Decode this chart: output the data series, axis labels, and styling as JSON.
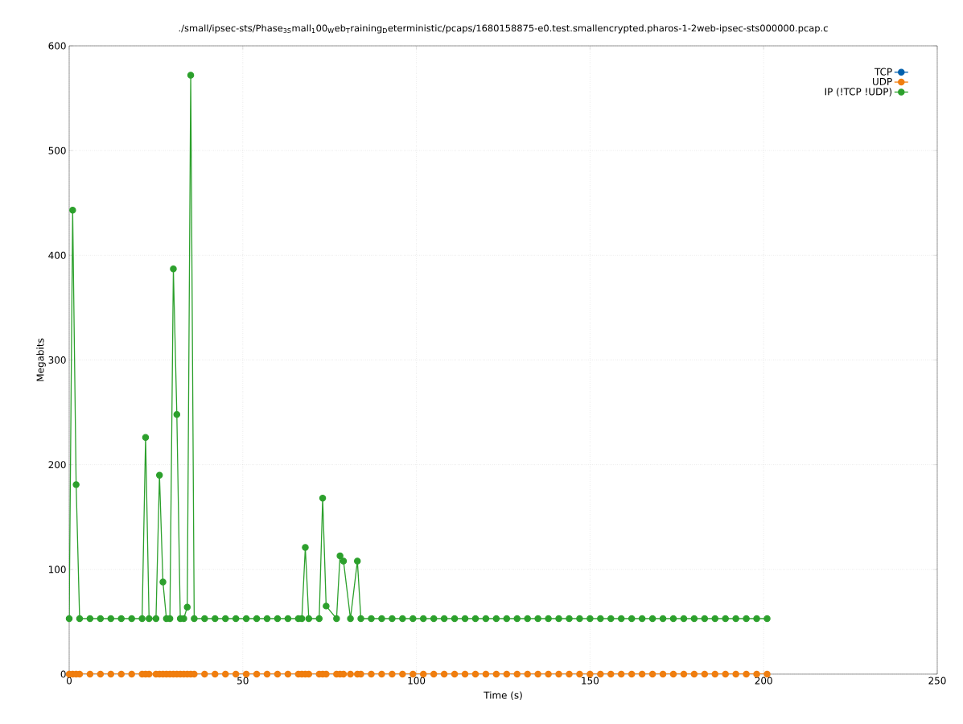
{
  "chart_data": {
    "type": "line",
    "title": "./small/ipsec-sts/Phase$_{3S}$mall$_{1}$00$_{W}$eb$_{T}$raining$_{D}$eterministic/pcaps/1680158875-e0.test.smallencrypted.pharos-1-2web-ipsec-sts000000.pcap.c",
    "xlabel": "Time (s)",
    "ylabel": "Megabits",
    "x": [
      0,
      1,
      2,
      3,
      6,
      9,
      12,
      15,
      18,
      21,
      22,
      23,
      25,
      26,
      27,
      28,
      29,
      30,
      31,
      32,
      33,
      34,
      35,
      36,
      39,
      42,
      45,
      48,
      51,
      54,
      57,
      60,
      63,
      66,
      67,
      68,
      69,
      72,
      73,
      74,
      77,
      78,
      79,
      81,
      83,
      84,
      87,
      90,
      93,
      96,
      99,
      102,
      105,
      108,
      111,
      114,
      117,
      120,
      123,
      126,
      129,
      132,
      135,
      138,
      141,
      144,
      147,
      150,
      153,
      156,
      159,
      162,
      165,
      168,
      171,
      174,
      177,
      180,
      183,
      186,
      189,
      192,
      195,
      198,
      201
    ],
    "series": [
      {
        "name": "TCP",
        "color": "#0060ad",
        "values": [
          null,
          null,
          null,
          null,
          null,
          null,
          null,
          null,
          null,
          null,
          null,
          null,
          null,
          null,
          null,
          null,
          null,
          null,
          null,
          null,
          null,
          null,
          null,
          null,
          null,
          null,
          null,
          null,
          null,
          null,
          null,
          null,
          null,
          null,
          null,
          null,
          null,
          null,
          null,
          null,
          null,
          null,
          null,
          null,
          null,
          null,
          null,
          null,
          null,
          null,
          null,
          null,
          null,
          null,
          null,
          null,
          null,
          null,
          null,
          null,
          null,
          null,
          null,
          null,
          null,
          null,
          null,
          null,
          null,
          null,
          null,
          null,
          null,
          null,
          null,
          null,
          null,
          null,
          null,
          null,
          null,
          null,
          null,
          null,
          null
        ]
      },
      {
        "name": "UDP",
        "color": "#f07e0f",
        "values": [
          0,
          0,
          0,
          0,
          0,
          0,
          0,
          0,
          0,
          0,
          0,
          0,
          0,
          0,
          0,
          0,
          0,
          0,
          0,
          0,
          0,
          0,
          0,
          0,
          0,
          0,
          0,
          0,
          0,
          0,
          0,
          0,
          0,
          0,
          0,
          0,
          0,
          0,
          0,
          0,
          0,
          0,
          0,
          0,
          0,
          0,
          0,
          0,
          0,
          0,
          0,
          0,
          0,
          0,
          0,
          0,
          0,
          0,
          0,
          0,
          0,
          0,
          0,
          0,
          0,
          0,
          0,
          0,
          0,
          0,
          0,
          0,
          0,
          0,
          0,
          0,
          0,
          0,
          0,
          0,
          0,
          0,
          0,
          0,
          0
        ]
      },
      {
        "name": "IP (!TCP  !UDP)",
        "color": "#2ca02c",
        "values": [
          53,
          443,
          181,
          53,
          53,
          53,
          53,
          53,
          53,
          53,
          226,
          53,
          53,
          190,
          88,
          53,
          53,
          387,
          248,
          53,
          53,
          64,
          572,
          53,
          53,
          53,
          53,
          53,
          53,
          53,
          53,
          53,
          53,
          53,
          53,
          121,
          53,
          53,
          168,
          65,
          53,
          113,
          108,
          53,
          108,
          53,
          53,
          53,
          53,
          53,
          53,
          53,
          53,
          53,
          53,
          53,
          53,
          53,
          53,
          53,
          53,
          53,
          53,
          53,
          53,
          53,
          53,
          53,
          53,
          53,
          53,
          53,
          53,
          53,
          53,
          53,
          53,
          53,
          53,
          53,
          53,
          53,
          53,
          53,
          53
        ]
      }
    ],
    "xlim": [
      0,
      250
    ],
    "xticks": [
      0,
      50,
      100,
      150,
      200,
      250
    ],
    "ylim": [
      0,
      600
    ],
    "yticks": [
      0,
      100,
      200,
      300,
      400,
      500,
      600
    ],
    "grid": true,
    "legend": "top right",
    "marker": "circle",
    "line_style": "solid"
  }
}
